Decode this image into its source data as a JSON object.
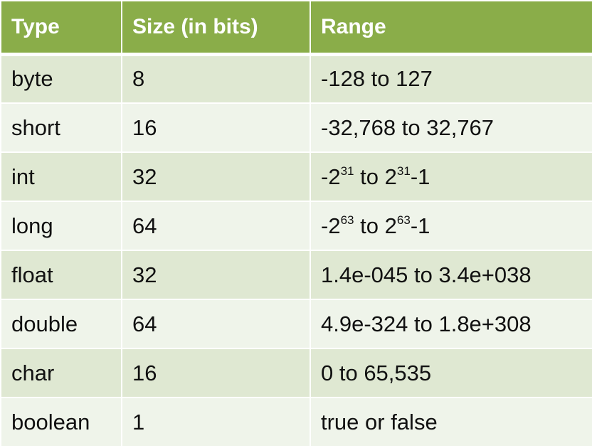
{
  "headers": [
    "Type",
    "Size (in bits)",
    "Range"
  ],
  "rows": [
    {
      "type": "byte",
      "size": "8",
      "range": [
        {
          "t": "-128 to 127"
        }
      ]
    },
    {
      "type": "short",
      "size": "16",
      "range": [
        {
          "t": "-32,768 to 32,767"
        }
      ]
    },
    {
      "type": "int",
      "size": "32",
      "range": [
        {
          "t": "-2"
        },
        {
          "sup": "31"
        },
        {
          "t": " to 2"
        },
        {
          "sup": "31"
        },
        {
          "t": "-1"
        }
      ]
    },
    {
      "type": "long",
      "size": "64",
      "range": [
        {
          "t": "-2"
        },
        {
          "sup": "63"
        },
        {
          "t": " to 2"
        },
        {
          "sup": "63"
        },
        {
          "t": "-1"
        }
      ]
    },
    {
      "type": "float",
      "size": "32",
      "range": [
        {
          "t": "1.4e-045 to 3.4e+038"
        }
      ]
    },
    {
      "type": "double",
      "size": "64",
      "range": [
        {
          "t": "4.9e-324 to 1.8e+308"
        }
      ]
    },
    {
      "type": "char",
      "size": "16",
      "range": [
        {
          "t": "0 to 65,535"
        }
      ]
    },
    {
      "type": "boolean",
      "size": "1",
      "range": [
        {
          "t": "true or false"
        }
      ]
    }
  ],
  "colors": {
    "header_bg": "#8aad49",
    "row_dark": "#dfe8d2",
    "row_light": "#eff4ea"
  }
}
